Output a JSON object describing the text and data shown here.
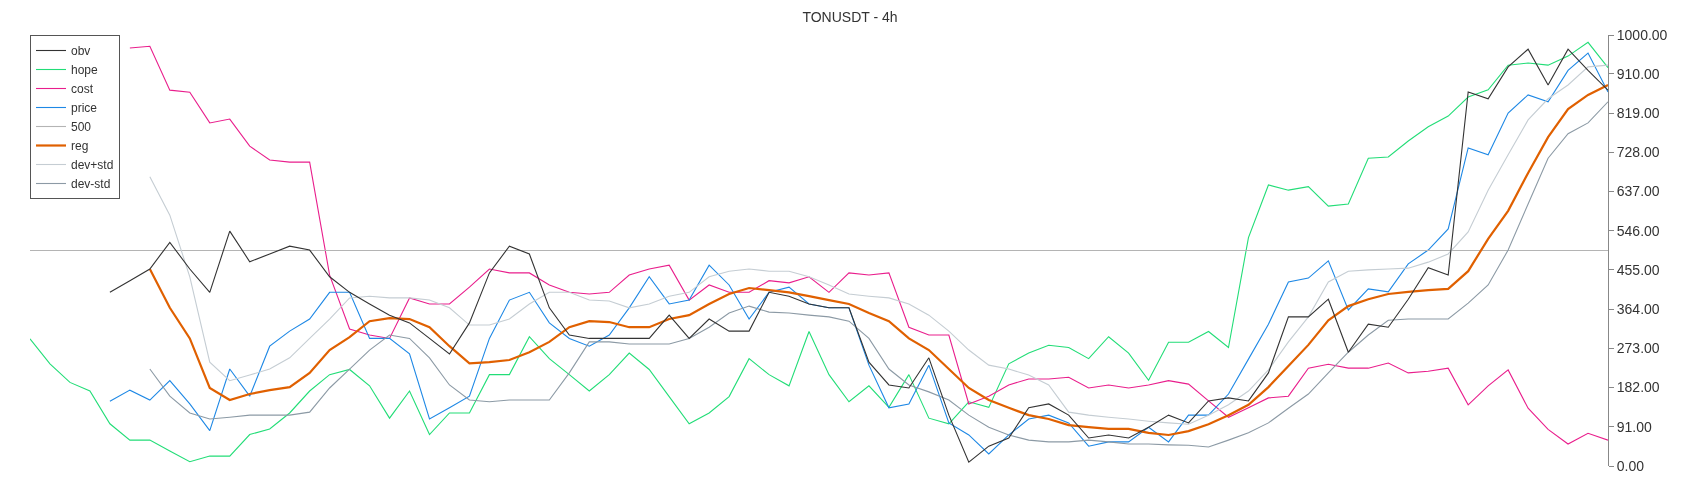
{
  "chart_data": {
    "type": "line",
    "title": "TONUSDT - 4h",
    "categories": [
      null,
      null,
      null,
      null,
      null,
      null,
      null,
      null,
      null,
      null,
      null,
      null,
      null,
      null,
      null,
      null,
      null,
      null,
      null,
      null,
      null,
      null,
      null,
      null,
      null,
      null,
      null,
      null,
      null,
      null,
      null,
      null,
      null,
      null,
      null,
      null,
      null,
      null,
      null,
      null,
      null,
      null,
      null,
      null,
      null,
      null,
      null,
      null,
      null,
      null,
      null,
      null,
      null,
      null,
      null,
      null,
      null,
      null,
      null,
      null,
      null,
      null,
      null,
      null,
      null,
      null,
      null,
      null,
      null,
      null,
      null,
      null,
      null,
      null,
      null,
      null,
      null,
      null,
      null,
      null
    ],
    "series": [
      {
        "name": "obv",
        "color": "#333333",
        "values": [
          null,
          null,
          null,
          null,
          403,
          430,
          457,
          519,
          457,
          403,
          545,
          474,
          492,
          510,
          501,
          439,
          403,
          376,
          350,
          332,
          296,
          260,
          332,
          448,
          510,
          492,
          367,
          304,
          296,
          296,
          296,
          296,
          350,
          296,
          341,
          313,
          313,
          403,
          394,
          376,
          367,
          367,
          241,
          188,
          181,
          251,
          118,
          9,
          46,
          65,
          135,
          144,
          118,
          65,
          72,
          65,
          90,
          118,
          100,
          151,
          158,
          151,
          216,
          346,
          346,
          387,
          264,
          329,
          322,
          387,
          460,
          443,
          868,
          852,
          926,
          967,
          884,
          967,
          918,
          872
        ]
      },
      {
        "name": "hope",
        "color": "#22dd77",
        "values": [
          295,
          237,
          194,
          174,
          98,
          60,
          60,
          35,
          10,
          23,
          23,
          73,
          86,
          123,
          174,
          212,
          224,
          186,
          111,
          174,
          73,
          123,
          123,
          212,
          212,
          300,
          249,
          212,
          174,
          212,
          262,
          224,
          161,
          98,
          123,
          161,
          249,
          212,
          186,
          312,
          212,
          149,
          186,
          136,
          212,
          111,
          98,
          149,
          136,
          237,
          262,
          280,
          275,
          249,
          300,
          262,
          199,
          287,
          287,
          312,
          275,
          530,
          652,
          640,
          648,
          603,
          608,
          714,
          717,
          754,
          787,
          812,
          856,
          873,
          930,
          935,
          930,
          951,
          983,
          924
        ]
      },
      {
        "name": "cost",
        "color": "#e91e8c",
        "values": [
          null,
          null,
          null,
          null,
          null,
          970,
          974,
          872,
          867,
          796,
          805,
          742,
          710,
          705,
          705,
          443,
          318,
          304,
          296,
          390,
          376,
          376,
          415,
          457,
          448,
          448,
          420,
          403,
          399,
          403,
          443,
          457,
          466,
          385,
          420,
          403,
          403,
          430,
          425,
          439,
          403,
          448,
          443,
          448,
          322,
          304,
          304,
          144,
          162,
          188,
          202,
          202,
          206,
          181,
          188,
          181,
          188,
          198,
          190,
          151,
          113,
          135,
          158,
          162,
          227,
          236,
          227,
          227,
          239,
          216,
          220,
          227,
          142,
          186,
          223,
          134,
          85,
          51,
          76,
          60
        ]
      },
      {
        "name": "price",
        "color": "#1e88e5",
        "values": [
          null,
          null,
          null,
          null,
          150,
          176,
          153,
          198,
          144,
          82,
          225,
          162,
          278,
          313,
          341,
          403,
          403,
          296,
          296,
          260,
          109,
          135,
          162,
          296,
          385,
          403,
          332,
          296,
          278,
          304,
          367,
          439,
          376,
          385,
          466,
          420,
          341,
          403,
          415,
          376,
          367,
          367,
          234,
          135,
          144,
          234,
          100,
          72,
          28,
          72,
          109,
          118,
          100,
          46,
          56,
          56,
          90,
          56,
          118,
          118,
          167,
          248,
          329,
          427,
          436,
          476,
          362,
          411,
          404,
          469,
          501,
          550,
          738,
          722,
          819,
          861,
          845,
          918,
          958,
          868
        ]
      },
      {
        "name": "500",
        "color": "#b4b4b4",
        "values": [
          500,
          500,
          500,
          500,
          500,
          500,
          500,
          500,
          500,
          500,
          500,
          500,
          500,
          500,
          500,
          500,
          500,
          500,
          500,
          500,
          500,
          500,
          500,
          500,
          500,
          500,
          500,
          500,
          500,
          500,
          500,
          500,
          500,
          500,
          500,
          500,
          500,
          500,
          500,
          500,
          500,
          500,
          500,
          500,
          500,
          500,
          500,
          500,
          500,
          500,
          500,
          500,
          500,
          500,
          500,
          500,
          500,
          500,
          500,
          500,
          500,
          500,
          500,
          500,
          500,
          500,
          500,
          500,
          500,
          500,
          500,
          500,
          500,
          500,
          500,
          500,
          500,
          500,
          500,
          500
        ]
      },
      {
        "name": "reg",
        "color": "#e06000",
        "values": [
          null,
          null,
          null,
          null,
          null,
          null,
          457,
          367,
          296,
          181,
          153,
          167,
          176,
          183,
          216,
          269,
          299,
          336,
          343,
          341,
          322,
          278,
          238,
          241,
          246,
          264,
          288,
          322,
          336,
          334,
          322,
          322,
          341,
          350,
          376,
          399,
          413,
          408,
          403,
          394,
          385,
          376,
          355,
          336,
          296,
          269,
          225,
          181,
          153,
          135,
          118,
          109,
          95,
          90,
          86,
          86,
          77,
          72,
          81,
          97,
          118,
          142,
          183,
          232,
          281,
          338,
          371,
          387,
          399,
          404,
          408,
          411,
          452,
          527,
          592,
          680,
          763,
          828,
          861,
          884
        ]
      },
      {
        "name": "dev+std",
        "color": "#c5cdd3",
        "values": [
          null,
          null,
          null,
          null,
          null,
          null,
          671,
          582,
          439,
          241,
          198,
          211,
          225,
          251,
          296,
          341,
          390,
          394,
          390,
          390,
          385,
          367,
          327,
          327,
          341,
          376,
          403,
          403,
          385,
          383,
          367,
          376,
          394,
          403,
          439,
          452,
          457,
          452,
          452,
          439,
          420,
          399,
          394,
          390,
          376,
          350,
          313,
          269,
          234,
          225,
          211,
          188,
          125,
          118,
          113,
          109,
          104,
          100,
          97,
          118,
          142,
          174,
          223,
          288,
          346,
          427,
          452,
          455,
          457,
          459,
          473,
          492,
          543,
          640,
          722,
          803,
          852,
          884,
          926,
          930
        ]
      },
      {
        "name": "dev-std",
        "color": "#8c9aa5",
        "values": [
          null,
          null,
          null,
          null,
          null,
          null,
          225,
          162,
          123,
          109,
          113,
          118,
          118,
          118,
          125,
          181,
          225,
          269,
          304,
          296,
          251,
          188,
          153,
          149,
          153,
          153,
          153,
          216,
          288,
          288,
          283,
          283,
          283,
          296,
          322,
          355,
          371,
          357,
          355,
          350,
          346,
          336,
          296,
          225,
          188,
          172,
          153,
          118,
          90,
          72,
          60,
          56,
          56,
          60,
          56,
          51,
          51,
          49,
          48,
          44,
          60,
          77,
          100,
          134,
          167,
          216,
          264,
          304,
          338,
          341,
          341,
          341,
          378,
          420,
          501,
          608,
          714,
          771,
          796,
          845
        ]
      }
    ],
    "ylim": [
      0,
      1000
    ],
    "yticks": [
      {
        "value": 0,
        "label": "0.00"
      },
      {
        "value": 91,
        "label": "91.00"
      },
      {
        "value": 182,
        "label": "182.00"
      },
      {
        "value": 273,
        "label": "273.00"
      },
      {
        "value": 364,
        "label": "364.00"
      },
      {
        "value": 455,
        "label": "455.00"
      },
      {
        "value": 546,
        "label": "546.00"
      },
      {
        "value": 637,
        "label": "637.00"
      },
      {
        "value": 728,
        "label": "728.00"
      },
      {
        "value": 819,
        "label": "819.00"
      },
      {
        "value": 910,
        "label": "910.00"
      },
      {
        "value": 1000,
        "label": "1000.00"
      }
    ],
    "tick_labels": "y",
    "legend": "top left",
    "marker": "none",
    "line_style": "solid"
  }
}
